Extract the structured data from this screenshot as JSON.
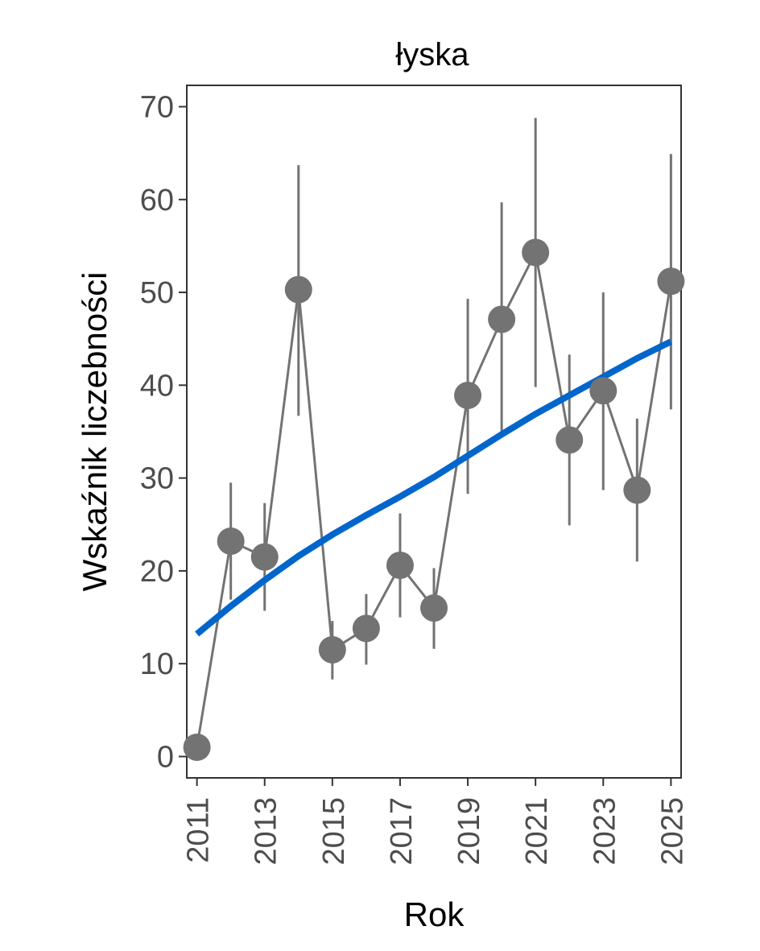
{
  "chart_data": {
    "type": "line",
    "title": "łyska",
    "xlabel": "Rok",
    "ylabel": "Wskaźnik liczebności",
    "xlim": [
      2010.7,
      2025.3
    ],
    "ylim": [
      -2.3,
      72.3
    ],
    "x_ticks": [
      2011,
      2013,
      2015,
      2017,
      2019,
      2021,
      2023,
      2025
    ],
    "y_ticks": [
      0,
      10,
      20,
      30,
      40,
      50,
      60,
      70
    ],
    "grid": false,
    "legend": "none",
    "series": [
      {
        "x": [
          2011,
          2012,
          2013,
          2014,
          2015,
          2016,
          2017,
          2018,
          2019,
          2020,
          2021,
          2022,
          2023,
          2024,
          2025
        ],
        "values": [
          1.0,
          23.2,
          21.5,
          50.3,
          11.5,
          13.8,
          20.6,
          16.0,
          38.9,
          47.1,
          54.3,
          34.1,
          39.4,
          28.7,
          51.2
        ],
        "lower": [
          null,
          16.9,
          15.7,
          36.7,
          8.3,
          9.9,
          15.0,
          11.6,
          28.3,
          34.9,
          39.8,
          24.9,
          28.7,
          21.0,
          37.4
        ],
        "upper": [
          null,
          29.5,
          27.3,
          63.7,
          14.6,
          17.5,
          26.2,
          20.3,
          49.3,
          59.7,
          68.8,
          43.3,
          50.0,
          36.4,
          64.9
        ],
        "color": "#737373"
      },
      {
        "x": [
          2011,
          2012,
          2013,
          2014,
          2015,
          2016,
          2017,
          2018,
          2019,
          2020,
          2021,
          2022,
          2023,
          2024,
          2025
        ],
        "values": [
          13.2,
          16.2,
          19.0,
          21.6,
          23.9,
          26.0,
          28.0,
          30.1,
          32.4,
          34.7,
          36.9,
          38.9,
          40.9,
          42.9,
          44.7
        ],
        "color": "#0066cc"
      }
    ]
  }
}
